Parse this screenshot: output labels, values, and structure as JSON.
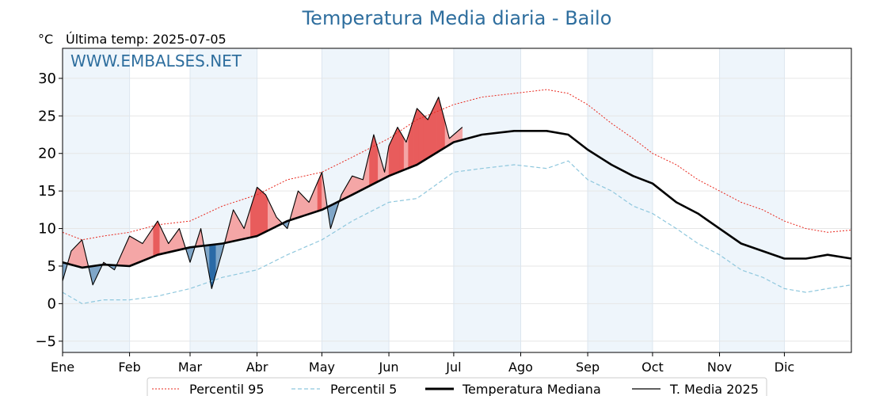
{
  "chart_data": {
    "type": "line",
    "title": "Temperatura Media diaria - Bailo",
    "ylabel": "°C",
    "subtitle": "Última temp: 2025-07-05",
    "watermark": "WWW.EMBALSES.NET",
    "ylim": [
      -6.5,
      34
    ],
    "yticks": [
      -5,
      0,
      5,
      10,
      15,
      20,
      25,
      30
    ],
    "xlim": [
      1,
      366
    ],
    "months": [
      {
        "label": "Ene",
        "day": 1
      },
      {
        "label": "Feb",
        "day": 32
      },
      {
        "label": "Mar",
        "day": 60
      },
      {
        "label": "Abr",
        "day": 91
      },
      {
        "label": "May",
        "day": 121
      },
      {
        "label": "Jun",
        "day": 152
      },
      {
        "label": "Jul",
        "day": 182
      },
      {
        "label": "Ago",
        "day": 213
      },
      {
        "label": "Sep",
        "day": 244
      },
      {
        "label": "Oct",
        "day": 274
      },
      {
        "label": "Nov",
        "day": 305
      },
      {
        "label": "Dic",
        "day": 335
      }
    ],
    "shaded_month_bands": [
      [
        1,
        32
      ],
      [
        60,
        91
      ],
      [
        121,
        152
      ],
      [
        182,
        213
      ],
      [
        244,
        274
      ],
      [
        305,
        335
      ]
    ],
    "grid": true,
    "legend_position": "bottom-center",
    "colors": {
      "p95": "#e8281e",
      "p5": "#8ec7dd",
      "median": "#000000",
      "current": "#000000",
      "above_light": "#f4a6a6",
      "above_dark": "#e85c5c",
      "below_light": "#7fa6c8",
      "below_dark": "#2a6aa6",
      "band": "#eef5fb",
      "title": "#2e6e9e"
    },
    "series": [
      {
        "name": "Percentil 95",
        "style": "dotted",
        "days": [
          1,
          10,
          20,
          32,
          45,
          60,
          75,
          91,
          105,
          121,
          135,
          152,
          165,
          182,
          195,
          210,
          225,
          235,
          244,
          255,
          265,
          274,
          285,
          295,
          305,
          315,
          325,
          335,
          345,
          355,
          366
        ],
        "values": [
          9.5,
          8.5,
          9.0,
          9.5,
          10.5,
          11.0,
          13.0,
          14.5,
          16.5,
          17.5,
          19.5,
          22.0,
          24.5,
          26.5,
          27.5,
          28.0,
          28.5,
          28.0,
          26.5,
          24.0,
          22.0,
          20.0,
          18.5,
          16.5,
          15.0,
          13.5,
          12.5,
          11.0,
          10.0,
          9.5,
          9.8
        ]
      },
      {
        "name": "Percentil 5",
        "style": "dashed",
        "days": [
          1,
          10,
          20,
          32,
          45,
          60,
          75,
          91,
          105,
          121,
          135,
          152,
          165,
          182,
          195,
          210,
          225,
          235,
          244,
          255,
          265,
          274,
          285,
          295,
          305,
          315,
          325,
          335,
          345,
          355,
          366
        ],
        "values": [
          1.5,
          0.0,
          0.5,
          0.5,
          1.0,
          2.0,
          3.5,
          4.5,
          6.5,
          8.5,
          11.0,
          13.5,
          14.0,
          17.5,
          18.0,
          18.5,
          18.0,
          19.0,
          16.5,
          15.0,
          13.0,
          12.0,
          10.0,
          8.0,
          6.5,
          4.5,
          3.5,
          2.0,
          1.5,
          2.0,
          2.5
        ]
      },
      {
        "name": "Temperatura Mediana",
        "style": "solid-thick",
        "days": [
          1,
          10,
          20,
          32,
          45,
          60,
          75,
          91,
          105,
          121,
          135,
          152,
          165,
          182,
          195,
          210,
          225,
          235,
          244,
          255,
          265,
          274,
          285,
          295,
          305,
          315,
          325,
          335,
          345,
          355,
          366
        ],
        "values": [
          5.5,
          4.8,
          5.2,
          5.0,
          6.5,
          7.5,
          8.0,
          9.0,
          11.0,
          12.5,
          14.5,
          17.0,
          18.5,
          21.5,
          22.5,
          23.0,
          23.0,
          22.5,
          20.5,
          18.5,
          17.0,
          16.0,
          13.5,
          12.0,
          10.0,
          8.0,
          7.0,
          6.0,
          6.0,
          6.5,
          6.0
        ]
      },
      {
        "name": "T. Media 2025",
        "style": "solid-thin",
        "days": [
          1,
          5,
          10,
          15,
          20,
          25,
          32,
          38,
          45,
          50,
          55,
          60,
          65,
          70,
          75,
          80,
          85,
          91,
          95,
          100,
          105,
          110,
          115,
          121,
          125,
          130,
          135,
          140,
          145,
          150,
          152,
          156,
          160,
          165,
          170,
          175,
          180,
          186
        ],
        "values": [
          3.0,
          7.0,
          8.5,
          2.5,
          5.5,
          4.5,
          9.0,
          8.0,
          11.0,
          8.0,
          10.0,
          5.5,
          10.0,
          2.0,
          7.0,
          12.5,
          10.0,
          15.5,
          14.5,
          11.5,
          10.0,
          15.0,
          13.5,
          17.5,
          10.0,
          14.5,
          17.0,
          16.5,
          22.5,
          17.5,
          21.0,
          23.5,
          21.5,
          26.0,
          24.5,
          27.5,
          22.0,
          23.5
        ]
      }
    ]
  }
}
